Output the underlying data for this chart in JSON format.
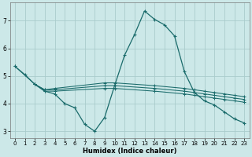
{
  "xlabel": "Humidex (Indice chaleur)",
  "bg_color": "#cce8e8",
  "grid_color": "#aacccc",
  "line_color": "#1a6b6b",
  "xlim": [
    -0.5,
    23.5
  ],
  "ylim": [
    2.75,
    7.65
  ],
  "xticks": [
    0,
    1,
    2,
    3,
    4,
    5,
    6,
    7,
    8,
    9,
    10,
    11,
    12,
    13,
    14,
    15,
    16,
    17,
    18,
    19,
    20,
    21,
    22,
    23
  ],
  "yticks": [
    3,
    4,
    5,
    6,
    7
  ],
  "series": [
    {
      "x": [
        0,
        1,
        2,
        3,
        4,
        5,
        6,
        7,
        8,
        9,
        10,
        11,
        12,
        13,
        14,
        15,
        16,
        17,
        18,
        19,
        20,
        21,
        22,
        23
      ],
      "y": [
        5.35,
        5.05,
        4.7,
        4.45,
        4.35,
        4.0,
        3.85,
        3.25,
        3.0,
        3.5,
        4.65,
        5.75,
        6.5,
        7.35,
        7.05,
        6.85,
        6.45,
        5.15,
        4.4,
        4.1,
        3.95,
        3.7,
        3.45,
        3.3
      ]
    },
    {
      "x": [
        0,
        2,
        3,
        4,
        9,
        10,
        14,
        17,
        18,
        19,
        20,
        21,
        22,
        23
      ],
      "y": [
        5.35,
        4.7,
        4.5,
        4.55,
        4.75,
        4.75,
        4.65,
        4.55,
        4.5,
        4.45,
        4.4,
        4.35,
        4.3,
        4.25
      ]
    },
    {
      "x": [
        2,
        3,
        4,
        9,
        10,
        14,
        17,
        18,
        19,
        20,
        21,
        22,
        23
      ],
      "y": [
        4.7,
        4.5,
        4.5,
        4.65,
        4.65,
        4.55,
        4.45,
        4.4,
        4.35,
        4.3,
        4.25,
        4.2,
        4.15
      ]
    },
    {
      "x": [
        2,
        3,
        4,
        9,
        10,
        14,
        17,
        18,
        19,
        20,
        21,
        22,
        23
      ],
      "y": [
        4.7,
        4.45,
        4.45,
        4.55,
        4.55,
        4.45,
        4.35,
        4.3,
        4.25,
        4.2,
        4.15,
        4.1,
        4.05
      ]
    }
  ]
}
